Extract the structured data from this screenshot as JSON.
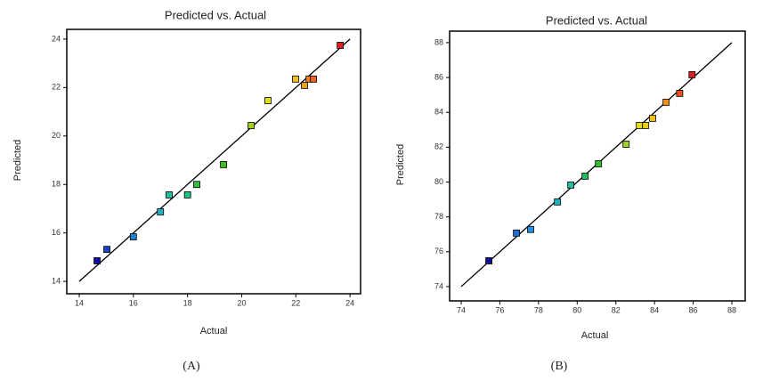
{
  "chart_data": [
    {
      "type": "scatter",
      "title": "Predicted vs. Actual",
      "x_label": "Actual",
      "y_label": "Predicted",
      "caption": "(A)",
      "xlim": [
        13.54,
        24.39
      ],
      "ylim": [
        13.49,
        24.4
      ],
      "xticks": [
        14,
        16,
        18,
        20,
        22,
        24
      ],
      "yticks": [
        14,
        16,
        18,
        20,
        22,
        24
      ],
      "reference_line": true,
      "series": [
        {
          "x": [
            14.66,
            15.02,
            16.0,
            17.0,
            17.32,
            18.0,
            18.34,
            19.33,
            20.35,
            20.97,
            21.99,
            22.32,
            22.49,
            22.65,
            23.64
          ],
          "values": [
            14.85,
            15.32,
            15.84,
            16.87,
            17.57,
            17.57,
            18.0,
            18.82,
            20.43,
            21.46,
            22.35,
            22.09,
            22.35,
            22.35,
            23.74
          ],
          "colors": [
            "#1010a0",
            "#2040c0",
            "#2080d0",
            "#20b0c0",
            "#20c0a0",
            "#20c080",
            "#30c040",
            "#40c020",
            "#a0d020",
            "#e0e020",
            "#f0c020",
            "#f0a020",
            "#f08020",
            "#f06020",
            "#e02020"
          ]
        }
      ]
    },
    {
      "type": "scatter",
      "title": "Predicted vs. Actual",
      "x_label": "Actual",
      "y_label": "Predicted",
      "caption": "(B)",
      "xlim": [
        73.4,
        88.69
      ],
      "ylim": [
        73.18,
        88.66
      ],
      "xticks": [
        74,
        76,
        78,
        80,
        82,
        84,
        86,
        88
      ],
      "yticks": [
        74,
        76,
        78,
        80,
        82,
        84,
        86,
        88
      ],
      "reference_line": true,
      "series": [
        {
          "x": [
            75.43,
            76.86,
            77.59,
            78.98,
            79.67,
            80.41,
            81.1,
            82.53,
            83.22,
            83.54,
            83.9,
            84.6,
            85.3,
            85.94
          ],
          "values": [
            75.48,
            77.07,
            77.28,
            78.86,
            79.83,
            80.34,
            81.05,
            82.17,
            83.25,
            83.25,
            83.66,
            84.58,
            85.09,
            86.16
          ],
          "colors": [
            "#101090",
            "#2070d0",
            "#2090e0",
            "#20b0c0",
            "#20c0a0",
            "#20c060",
            "#30c030",
            "#a0d020",
            "#e0e020",
            "#e8d020",
            "#f0c020",
            "#f09020",
            "#f05020",
            "#e02020"
          ]
        }
      ]
    }
  ]
}
